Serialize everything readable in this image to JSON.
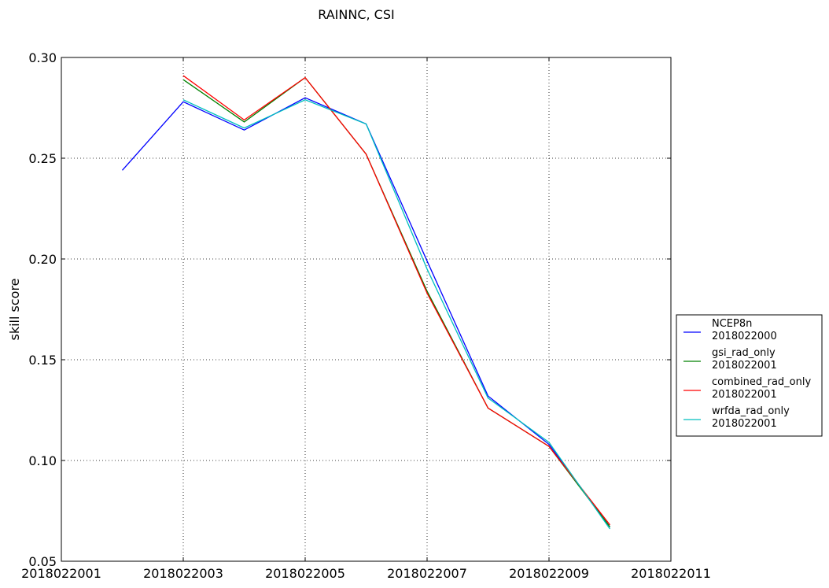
{
  "chart_data": {
    "type": "line",
    "title": "RAINNC, CSI",
    "xlabel": "",
    "ylabel": "skill score",
    "ylim": [
      0.05,
      0.3
    ],
    "xlim": [
      2018022001,
      2018022011
    ],
    "yticks": [
      "0.05",
      "0.10",
      "0.15",
      "0.20",
      "0.25",
      "0.30"
    ],
    "xticks": [
      "2018022001",
      "2018022003",
      "2018022005",
      "2018022007",
      "2018022009",
      "2018022011"
    ],
    "grid": true,
    "legend_position": "right",
    "series": [
      {
        "name": "NCEP8n",
        "name2": "2018022000",
        "color": "#0000ff",
        "points": [
          [
            2018022002,
            0.244
          ],
          [
            2018022003,
            0.278
          ],
          [
            2018022004,
            0.264
          ],
          [
            2018022005,
            0.28
          ],
          [
            2018022006,
            0.267
          ],
          [
            2018022007,
            0.199
          ],
          [
            2018022008,
            0.132
          ],
          [
            2018022009,
            0.108
          ],
          [
            2018022010,
            0.067
          ]
        ]
      },
      {
        "name": "gsi_rad_only",
        "name2": "2018022001",
        "color": "#008000",
        "points": [
          [
            2018022003,
            0.289
          ],
          [
            2018022004,
            0.268
          ],
          [
            2018022005,
            0.29
          ],
          [
            2018022006,
            0.252
          ],
          [
            2018022007,
            0.184
          ],
          [
            2018022008,
            0.126
          ],
          [
            2018022009,
            0.107
          ],
          [
            2018022010,
            0.067
          ]
        ]
      },
      {
        "name": "combined_rad_only",
        "name2": "2018022001",
        "color": "#ff0000",
        "points": [
          [
            2018022003,
            0.291
          ],
          [
            2018022004,
            0.269
          ],
          [
            2018022005,
            0.29
          ],
          [
            2018022006,
            0.252
          ],
          [
            2018022007,
            0.183
          ],
          [
            2018022008,
            0.126
          ],
          [
            2018022009,
            0.107
          ],
          [
            2018022010,
            0.068
          ]
        ]
      },
      {
        "name": "wrfda_rad_only",
        "name2": "2018022001",
        "color": "#00bfbf",
        "points": [
          [
            2018022003,
            0.279
          ],
          [
            2018022004,
            0.265
          ],
          [
            2018022005,
            0.279
          ],
          [
            2018022006,
            0.267
          ],
          [
            2018022007,
            0.195
          ],
          [
            2018022008,
            0.131
          ],
          [
            2018022009,
            0.109
          ],
          [
            2018022010,
            0.066
          ]
        ]
      }
    ]
  }
}
